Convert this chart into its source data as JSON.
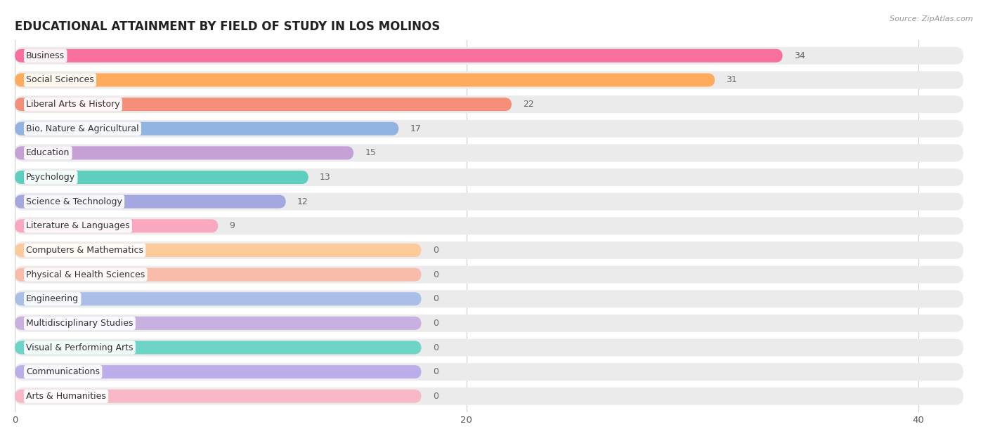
{
  "title": "EDUCATIONAL ATTAINMENT BY FIELD OF STUDY IN LOS MOLINOS",
  "source": "Source: ZipAtlas.com",
  "categories": [
    "Business",
    "Social Sciences",
    "Liberal Arts & History",
    "Bio, Nature & Agricultural",
    "Education",
    "Psychology",
    "Science & Technology",
    "Literature & Languages",
    "Computers & Mathematics",
    "Physical & Health Sciences",
    "Engineering",
    "Multidisciplinary Studies",
    "Visual & Performing Arts",
    "Communications",
    "Arts & Humanities"
  ],
  "values": [
    34,
    31,
    22,
    17,
    15,
    13,
    12,
    9,
    0,
    0,
    0,
    0,
    0,
    0,
    0
  ],
  "bar_colors": [
    "#F8719D",
    "#FFAA5C",
    "#F4907A",
    "#92B4E3",
    "#C4A0D4",
    "#5ECFBF",
    "#A5A8E0",
    "#F9A8BF",
    "#FFCA99",
    "#F9BBAA",
    "#AABFE8",
    "#C8B0E0",
    "#6DD5C8",
    "#BCAEE8",
    "#F9B8C8"
  ],
  "xlim_max": 42,
  "background_color": "#ffffff",
  "bar_bg_color": "#ebebeb",
  "title_fontsize": 12,
  "label_fontsize": 9,
  "value_fontsize": 9,
  "zero_bar_width": 18
}
